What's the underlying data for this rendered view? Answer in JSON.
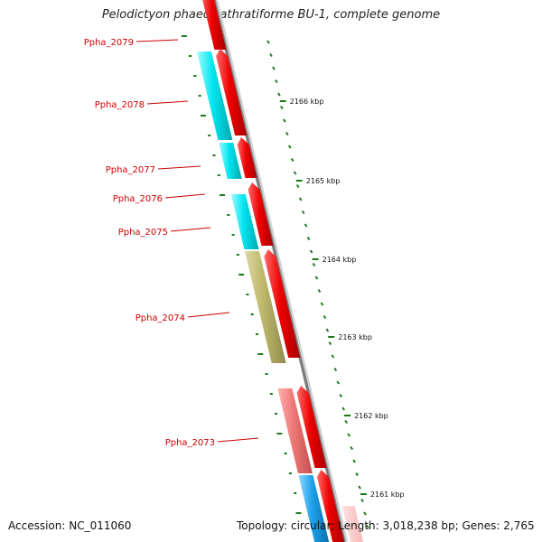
{
  "title": "Pelodictyon phaeoclathratiforme BU-1, complete genome",
  "accession_text": "Accession: NC_011060",
  "summary_text": "Topology: circular; Length: 3,018,238 bp; Genes: 2,765",
  "colors": {
    "gene_red": "#ee0000",
    "cyan": "#00e5ee",
    "khaki": "#bdb76b",
    "salmon": "#ee7777",
    "blue": "#1ea0e8",
    "tick_green": "#1a7a1a",
    "label_red": "#cc0000",
    "backbone": "#888888"
  },
  "genes": [
    {
      "name": "Ppha_2079"
    },
    {
      "name": "Ppha_2078"
    },
    {
      "name": "Ppha_2077"
    },
    {
      "name": "Ppha_2076"
    },
    {
      "name": "Ppha_2075"
    },
    {
      "name": "Ppha_2074"
    },
    {
      "name": "Ppha_2073"
    }
  ],
  "scale_labels": [
    "2166 kbp",
    "2165 kbp",
    "2164 kbp",
    "2163 kbp",
    "2162 kbp",
    "2161 kbp"
  ]
}
